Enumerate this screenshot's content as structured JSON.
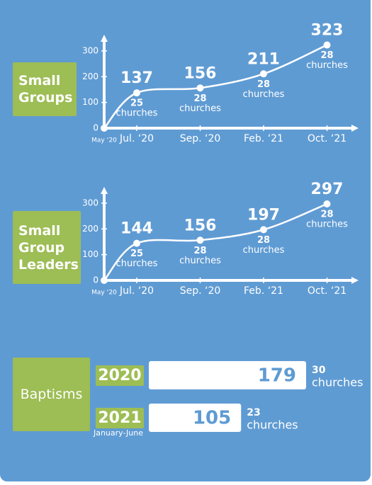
{
  "chart_data": [
    {
      "type": "line",
      "title": "Small Groups",
      "categories": [
        "May ‘20",
        "Jul. ‘20",
        "Sep. ‘20",
        "Feb. ‘21",
        "Oct. ‘21"
      ],
      "values": [
        0,
        137,
        156,
        211,
        323
      ],
      "churches": [
        null,
        25,
        28,
        28,
        28
      ],
      "churches_label": "churches",
      "ylim": [
        0,
        330
      ],
      "yticks": [
        0,
        100,
        200,
        300
      ],
      "color": "#ffffff"
    },
    {
      "type": "line",
      "title": "Small Group Leaders",
      "categories": [
        "May ‘20",
        "Jul. ‘20",
        "Sep. ‘20",
        "Feb. ‘21",
        "Oct. ‘21"
      ],
      "values": [
        0,
        144,
        156,
        197,
        297
      ],
      "churches": [
        null,
        25,
        28,
        28,
        28
      ],
      "churches_label": "churches",
      "ylim": [
        0,
        330
      ],
      "yticks": [
        0,
        100,
        200,
        300
      ],
      "color": "#ffffff"
    },
    {
      "type": "bar",
      "title": "Baptisms",
      "categories": [
        "2020",
        "2021"
      ],
      "category_notes": [
        null,
        "January-June"
      ],
      "values": [
        179,
        105
      ],
      "churches": [
        30,
        23
      ],
      "churches_label": "churches",
      "color": "#ffffff"
    }
  ]
}
